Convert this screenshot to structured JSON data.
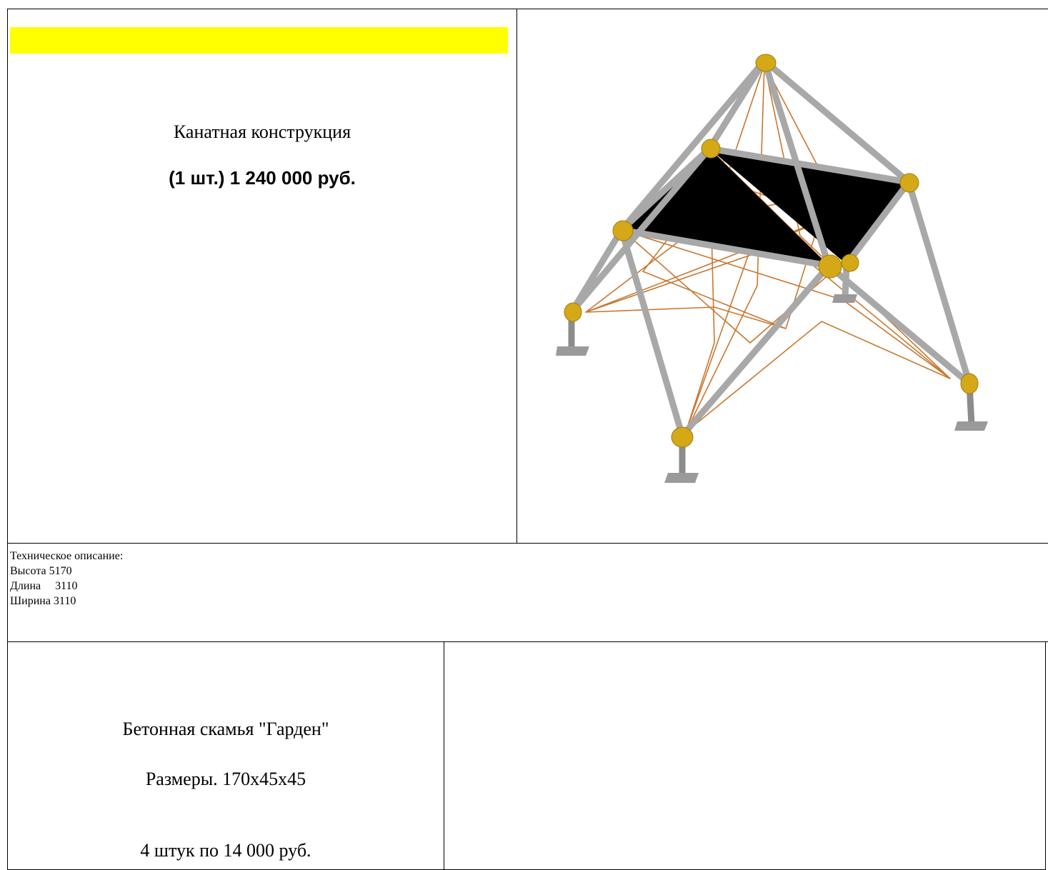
{
  "product1": {
    "title": "Канатная конструкция",
    "price": "(1 шт.) 1 240 000 руб.",
    "specs": {
      "heading": "Техническое описание:",
      "lines": [
        "Высота 5170",
        "Длина     3110",
        "Ширина 3110"
      ]
    }
  },
  "product2": {
    "title": "Бетонная скамья \"Гарден\"",
    "size": "Размеры. 170х45х45",
    "price": "4 штук по 14 000 руб."
  }
}
